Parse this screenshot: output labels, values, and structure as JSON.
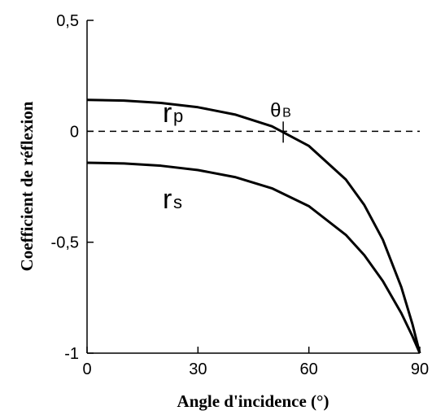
{
  "chart_data": {
    "type": "line",
    "xlabel": "Angle d'incidence (°)",
    "ylabel": "Coefficient de réflexion",
    "x": [
      0,
      10,
      20,
      30,
      40,
      50,
      60,
      70,
      75,
      80,
      85,
      88,
      90
    ],
    "series": [
      {
        "name": "r",
        "subscript": "p",
        "color": "#000000",
        "values": [
          0.1416,
          0.1384,
          0.1279,
          0.1083,
          0.0756,
          0.0224,
          -0.066,
          -0.2174,
          -0.3327,
          -0.4886,
          -0.7022,
          -0.8686,
          -1
        ]
      },
      {
        "name": "r",
        "subscript": "s",
        "color": "#000000",
        "values": [
          -0.1416,
          -0.1449,
          -0.1553,
          -0.1747,
          -0.2064,
          -0.2569,
          -0.3375,
          -0.467,
          -0.5587,
          -0.6748,
          -0.8199,
          -0.9235,
          -1
        ]
      }
    ],
    "annotation": {
      "text": "θ",
      "subscript": "B",
      "x": 53.06
    },
    "xlim": [
      0,
      90
    ],
    "ylim": [
      -1,
      0.5
    ],
    "xticks": [
      0,
      30,
      60,
      90
    ],
    "yticks": [
      {
        "value": -1,
        "label": "-1"
      },
      {
        "value": -0.5,
        "label": "-0,5"
      },
      0,
      {
        "value": 0.5,
        "label": "0,5"
      }
    ],
    "zero_line": "dashed"
  }
}
